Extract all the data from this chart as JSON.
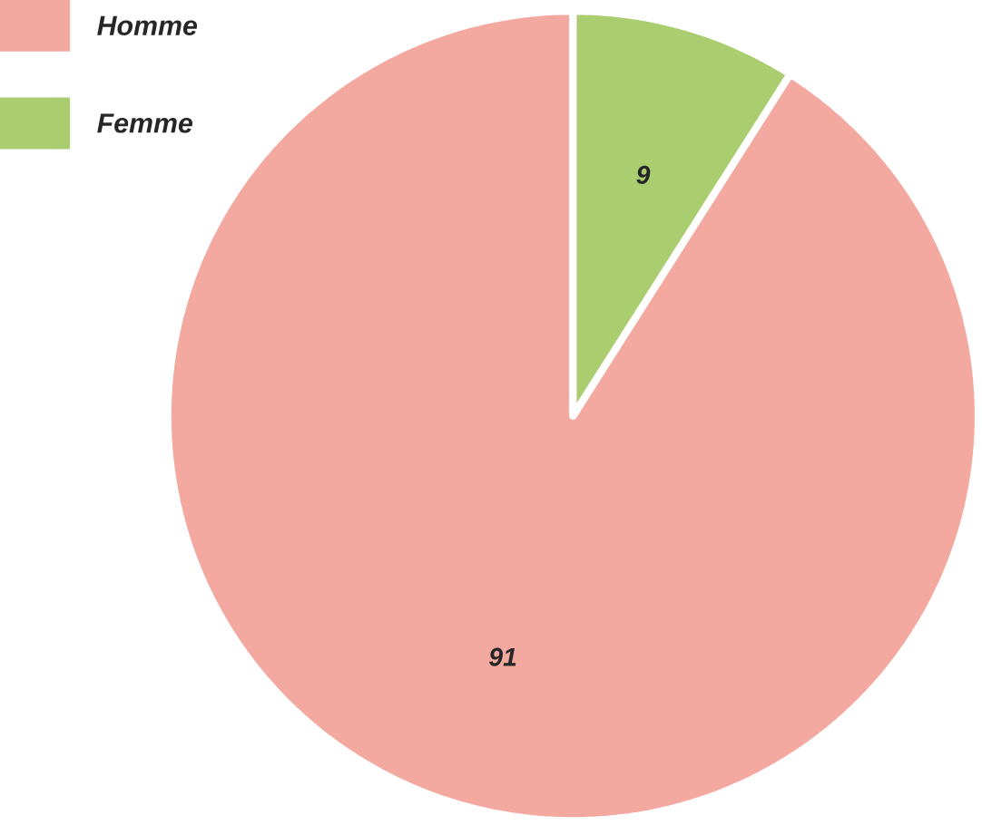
{
  "chart_data": {
    "type": "pie",
    "categories": [
      "Homme",
      "Femme"
    ],
    "values": [
      91,
      9
    ],
    "colors": [
      "#f4a9a0",
      "#a9cd6f"
    ],
    "data_labels": true,
    "legend": "top left"
  }
}
